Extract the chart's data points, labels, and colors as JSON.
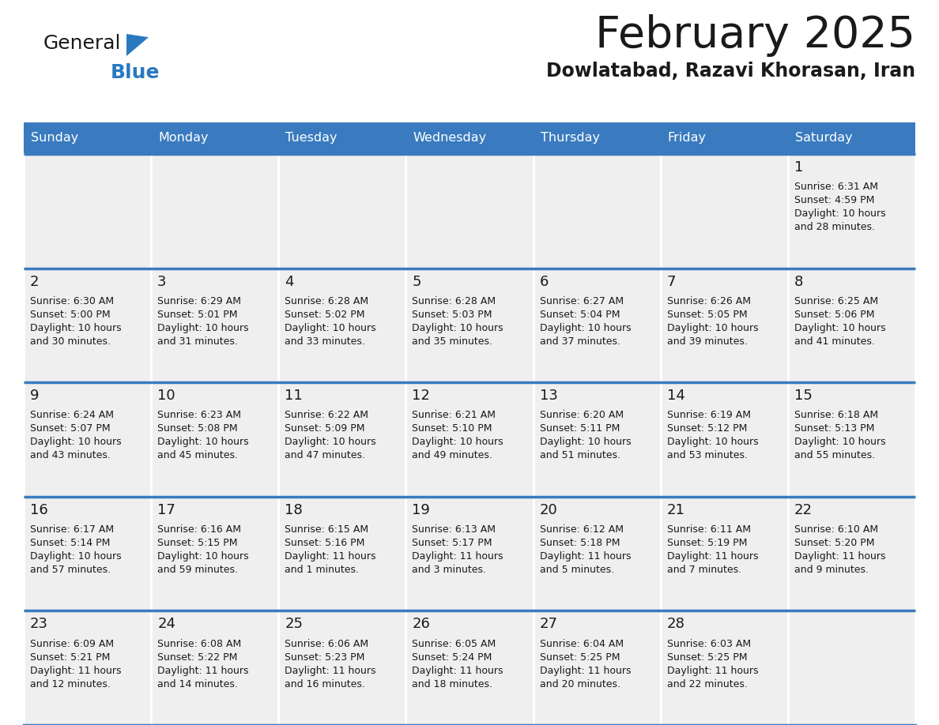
{
  "title": "February 2025",
  "subtitle": "Dowlatabad, Razavi Khorasan, Iran",
  "header_color": "#3a7bbf",
  "header_text_color": "#ffffff",
  "cell_bg_color": "#efefef",
  "cell_border_color": "#3a7bbf",
  "days_of_week": [
    "Sunday",
    "Monday",
    "Tuesday",
    "Wednesday",
    "Thursday",
    "Friday",
    "Saturday"
  ],
  "logo_general_color": "#1a1a1a",
  "logo_blue_color": "#2979c0",
  "calendar_data": [
    {
      "day": 1,
      "col": 6,
      "row": 0,
      "sunrise": "6:31 AM",
      "sunset": "4:59 PM",
      "daylight_hours": 10,
      "daylight_minutes": 28
    },
    {
      "day": 2,
      "col": 0,
      "row": 1,
      "sunrise": "6:30 AM",
      "sunset": "5:00 PM",
      "daylight_hours": 10,
      "daylight_minutes": 30
    },
    {
      "day": 3,
      "col": 1,
      "row": 1,
      "sunrise": "6:29 AM",
      "sunset": "5:01 PM",
      "daylight_hours": 10,
      "daylight_minutes": 31
    },
    {
      "day": 4,
      "col": 2,
      "row": 1,
      "sunrise": "6:28 AM",
      "sunset": "5:02 PM",
      "daylight_hours": 10,
      "daylight_minutes": 33
    },
    {
      "day": 5,
      "col": 3,
      "row": 1,
      "sunrise": "6:28 AM",
      "sunset": "5:03 PM",
      "daylight_hours": 10,
      "daylight_minutes": 35
    },
    {
      "day": 6,
      "col": 4,
      "row": 1,
      "sunrise": "6:27 AM",
      "sunset": "5:04 PM",
      "daylight_hours": 10,
      "daylight_minutes": 37
    },
    {
      "day": 7,
      "col": 5,
      "row": 1,
      "sunrise": "6:26 AM",
      "sunset": "5:05 PM",
      "daylight_hours": 10,
      "daylight_minutes": 39
    },
    {
      "day": 8,
      "col": 6,
      "row": 1,
      "sunrise": "6:25 AM",
      "sunset": "5:06 PM",
      "daylight_hours": 10,
      "daylight_minutes": 41
    },
    {
      "day": 9,
      "col": 0,
      "row": 2,
      "sunrise": "6:24 AM",
      "sunset": "5:07 PM",
      "daylight_hours": 10,
      "daylight_minutes": 43
    },
    {
      "day": 10,
      "col": 1,
      "row": 2,
      "sunrise": "6:23 AM",
      "sunset": "5:08 PM",
      "daylight_hours": 10,
      "daylight_minutes": 45
    },
    {
      "day": 11,
      "col": 2,
      "row": 2,
      "sunrise": "6:22 AM",
      "sunset": "5:09 PM",
      "daylight_hours": 10,
      "daylight_minutes": 47
    },
    {
      "day": 12,
      "col": 3,
      "row": 2,
      "sunrise": "6:21 AM",
      "sunset": "5:10 PM",
      "daylight_hours": 10,
      "daylight_minutes": 49
    },
    {
      "day": 13,
      "col": 4,
      "row": 2,
      "sunrise": "6:20 AM",
      "sunset": "5:11 PM",
      "daylight_hours": 10,
      "daylight_minutes": 51
    },
    {
      "day": 14,
      "col": 5,
      "row": 2,
      "sunrise": "6:19 AM",
      "sunset": "5:12 PM",
      "daylight_hours": 10,
      "daylight_minutes": 53
    },
    {
      "day": 15,
      "col": 6,
      "row": 2,
      "sunrise": "6:18 AM",
      "sunset": "5:13 PM",
      "daylight_hours": 10,
      "daylight_minutes": 55
    },
    {
      "day": 16,
      "col": 0,
      "row": 3,
      "sunrise": "6:17 AM",
      "sunset": "5:14 PM",
      "daylight_hours": 10,
      "daylight_minutes": 57
    },
    {
      "day": 17,
      "col": 1,
      "row": 3,
      "sunrise": "6:16 AM",
      "sunset": "5:15 PM",
      "daylight_hours": 10,
      "daylight_minutes": 59
    },
    {
      "day": 18,
      "col": 2,
      "row": 3,
      "sunrise": "6:15 AM",
      "sunset": "5:16 PM",
      "daylight_hours": 11,
      "daylight_minutes": 1
    },
    {
      "day": 19,
      "col": 3,
      "row": 3,
      "sunrise": "6:13 AM",
      "sunset": "5:17 PM",
      "daylight_hours": 11,
      "daylight_minutes": 3
    },
    {
      "day": 20,
      "col": 4,
      "row": 3,
      "sunrise": "6:12 AM",
      "sunset": "5:18 PM",
      "daylight_hours": 11,
      "daylight_minutes": 5
    },
    {
      "day": 21,
      "col": 5,
      "row": 3,
      "sunrise": "6:11 AM",
      "sunset": "5:19 PM",
      "daylight_hours": 11,
      "daylight_minutes": 7
    },
    {
      "day": 22,
      "col": 6,
      "row": 3,
      "sunrise": "6:10 AM",
      "sunset": "5:20 PM",
      "daylight_hours": 11,
      "daylight_minutes": 9
    },
    {
      "day": 23,
      "col": 0,
      "row": 4,
      "sunrise": "6:09 AM",
      "sunset": "5:21 PM",
      "daylight_hours": 11,
      "daylight_minutes": 12
    },
    {
      "day": 24,
      "col": 1,
      "row": 4,
      "sunrise": "6:08 AM",
      "sunset": "5:22 PM",
      "daylight_hours": 11,
      "daylight_minutes": 14
    },
    {
      "day": 25,
      "col": 2,
      "row": 4,
      "sunrise": "6:06 AM",
      "sunset": "5:23 PM",
      "daylight_hours": 11,
      "daylight_minutes": 16
    },
    {
      "day": 26,
      "col": 3,
      "row": 4,
      "sunrise": "6:05 AM",
      "sunset": "5:24 PM",
      "daylight_hours": 11,
      "daylight_minutes": 18
    },
    {
      "day": 27,
      "col": 4,
      "row": 4,
      "sunrise": "6:04 AM",
      "sunset": "5:25 PM",
      "daylight_hours": 11,
      "daylight_minutes": 20
    },
    {
      "day": 28,
      "col": 5,
      "row": 4,
      "sunrise": "6:03 AM",
      "sunset": "5:25 PM",
      "daylight_hours": 11,
      "daylight_minutes": 22
    }
  ]
}
